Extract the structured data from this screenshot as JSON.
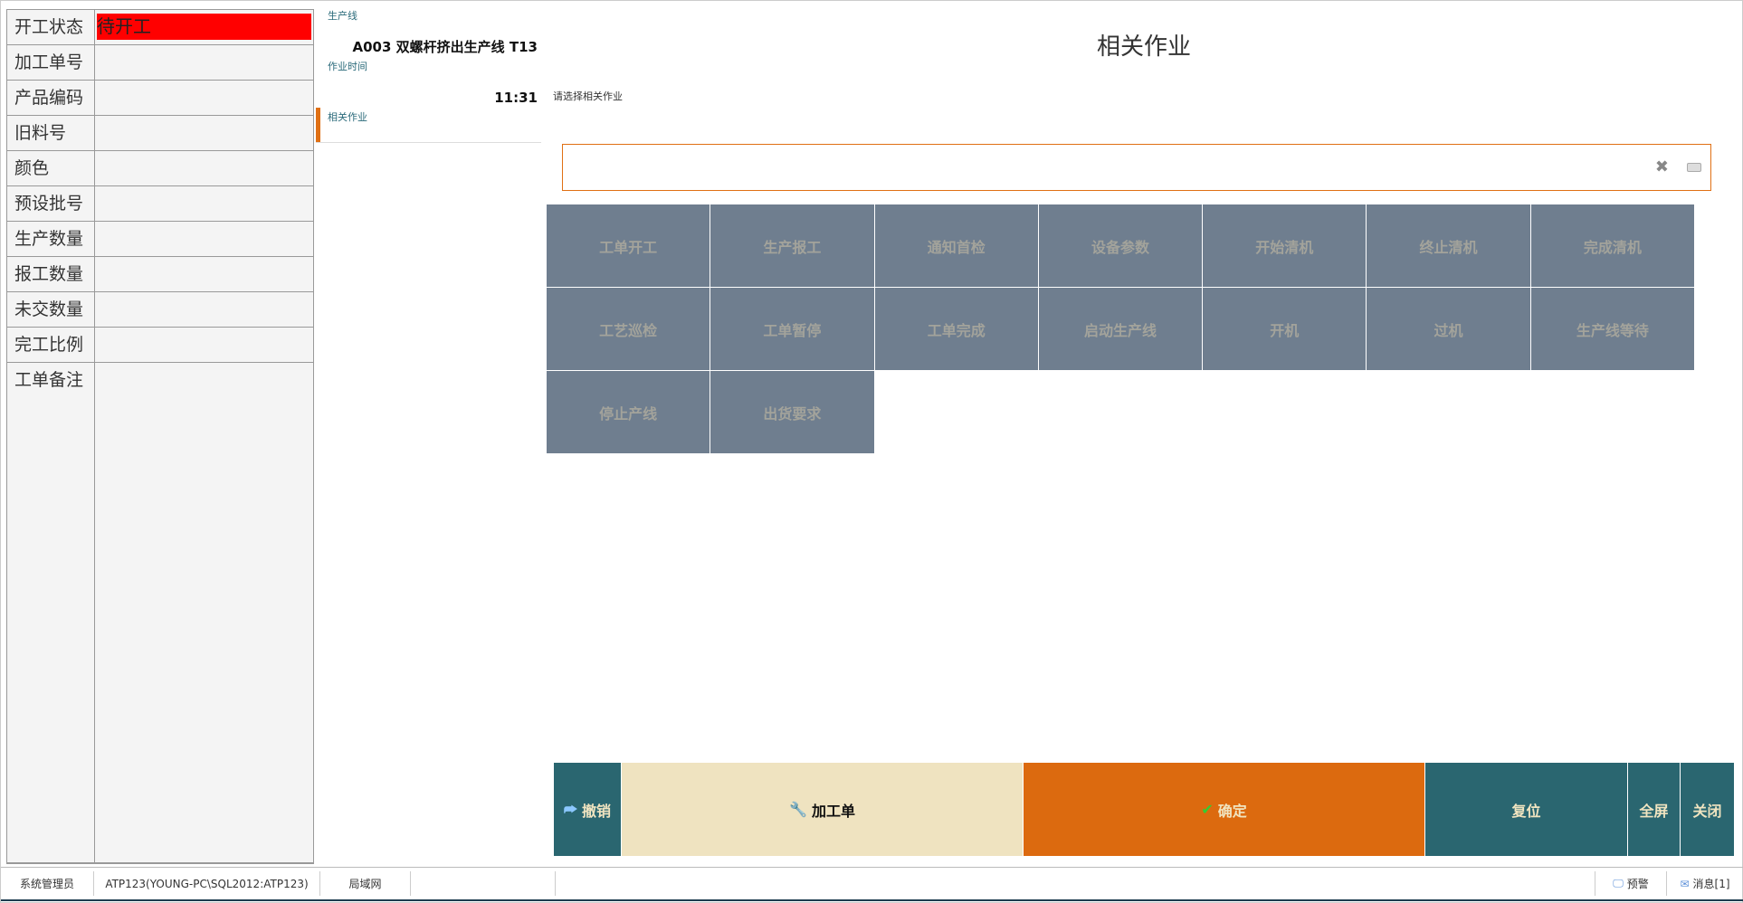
{
  "left_table": {
    "rows": [
      {
        "label": "开工状态",
        "value": "待开工",
        "value_bg": "#ff0000"
      },
      {
        "label": "加工单号",
        "value": ""
      },
      {
        "label": "产品编码",
        "value": ""
      },
      {
        "label": "旧料号",
        "value": ""
      },
      {
        "label": "颜色",
        "value": ""
      },
      {
        "label": "预设批号",
        "value": ""
      },
      {
        "label": "生产数量",
        "value": ""
      },
      {
        "label": "报工数量",
        "value": ""
      },
      {
        "label": "未交数量",
        "value": ""
      },
      {
        "label": "完工比例",
        "value": ""
      }
    ],
    "notes_label": "工单备注"
  },
  "middle": {
    "line_label": "生产线",
    "line_value": "A003 双螺杆挤出生产线  T13",
    "time_label": "作业时间",
    "time_value": "11:31",
    "job_label": "相关作业"
  },
  "main": {
    "title": "相关作业",
    "hint": "请选择相关作业",
    "search_value": "",
    "actions": [
      "工单开工",
      "生产报工",
      "通知首检",
      "设备参数",
      "开始清机",
      "终止清机",
      "完成清机",
      "工艺巡检",
      "工单暂停",
      "工单完成",
      "启动生产线",
      "开机",
      "过机",
      "生产线等待",
      "停止产线",
      "出货要求"
    ]
  },
  "buttons": {
    "undo": "撤销",
    "work_order": "加工单",
    "confirm": "确定",
    "reset": "复位",
    "fullscreen": "全屏",
    "close": "关闭"
  },
  "colors": {
    "accent": "#e07014",
    "teal": "#2a6670",
    "action_bg": "#6f7e8f",
    "work_order_bg": "#efe3c0"
  },
  "status": {
    "user": "系统管理员",
    "db": "ATP123(YOUNG-PC\\SQL2012:ATP123)",
    "network": "局域网",
    "alert": "预警",
    "messages": "消息[1]"
  }
}
